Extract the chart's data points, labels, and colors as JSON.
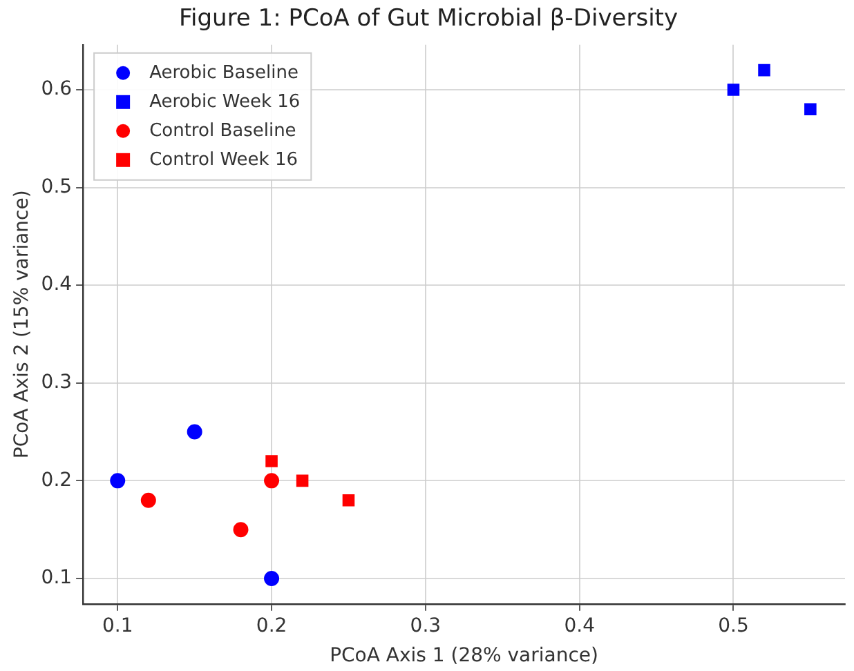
{
  "chart_data": {
    "type": "scatter",
    "title": "Figure 1: PCoA of Gut Microbial β-Diversity",
    "xlabel": "PCoA Axis 1 (28% variance)",
    "ylabel": "PCoA Axis 2 (15% variance)",
    "series": [
      {
        "name": "Aerobic Baseline",
        "color": "#0000ff",
        "marker": "circle",
        "x": [
          0.1,
          0.15,
          0.2
        ],
        "values": [
          0.2,
          0.25,
          0.1
        ]
      },
      {
        "name": "Aerobic Week 16",
        "color": "#0000ff",
        "marker": "square",
        "x": [
          0.5,
          0.52,
          0.55
        ],
        "values": [
          0.6,
          0.62,
          0.58
        ]
      },
      {
        "name": "Control Baseline",
        "color": "#ff0000",
        "marker": "circle",
        "x": [
          0.12,
          0.18,
          0.2
        ],
        "values": [
          0.18,
          0.15,
          0.2
        ]
      },
      {
        "name": "Control Week 16",
        "color": "#ff0000",
        "marker": "square",
        "x": [
          0.2,
          0.22,
          0.25
        ],
        "values": [
          0.22,
          0.2,
          0.18
        ]
      }
    ],
    "xlim": [
      0.0775,
      0.5725
    ],
    "ylim": [
      0.074,
      0.646
    ],
    "xticks": [
      0.1,
      0.2,
      0.3,
      0.4,
      0.5
    ],
    "yticks": [
      0.1,
      0.2,
      0.3,
      0.4,
      0.5,
      0.6
    ],
    "grid": true,
    "legend": "top left"
  }
}
